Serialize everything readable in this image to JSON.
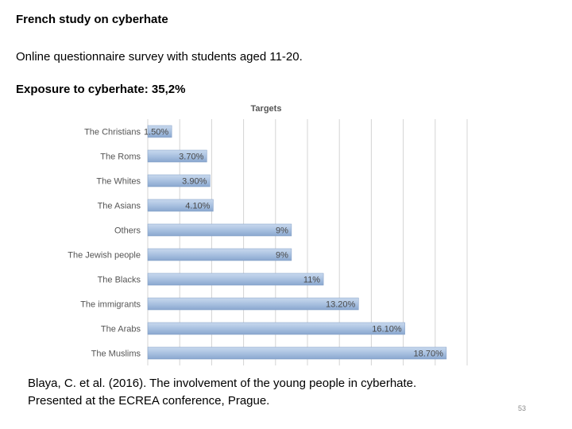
{
  "slide": {
    "title": "French study on cyberhate",
    "description": "Online questionnaire survey with students aged 11-20.",
    "exposure": "Exposure to cyberhate: 35,2%",
    "citation_line1": "Blaya, C. et al. (2016). The involvement of the young people in cyberhate.",
    "citation_line2": "Presented at the ECREA conference, Prague.",
    "slide_number": "53"
  },
  "chart_data": {
    "type": "bar",
    "orientation": "horizontal",
    "title": "Targets",
    "categories": [
      "The Christians",
      "The Roms",
      "The Whites",
      "The Asians",
      "Others",
      "The Jewish people",
      "The Blacks",
      "The immigrants",
      "The Arabs",
      "The Muslims"
    ],
    "values": [
      1.5,
      3.7,
      3.9,
      4.1,
      9,
      9,
      11,
      13.2,
      16.1,
      18.7
    ],
    "value_labels": [
      "1.50%",
      "3.70%",
      "3.90%",
      "4.10%",
      "9%",
      "9%",
      "11%",
      "13.20%",
      "16.10%",
      "18.70%"
    ],
    "xlim": [
      0,
      20
    ],
    "grid": true,
    "bar_color": "#a9c1e0"
  }
}
